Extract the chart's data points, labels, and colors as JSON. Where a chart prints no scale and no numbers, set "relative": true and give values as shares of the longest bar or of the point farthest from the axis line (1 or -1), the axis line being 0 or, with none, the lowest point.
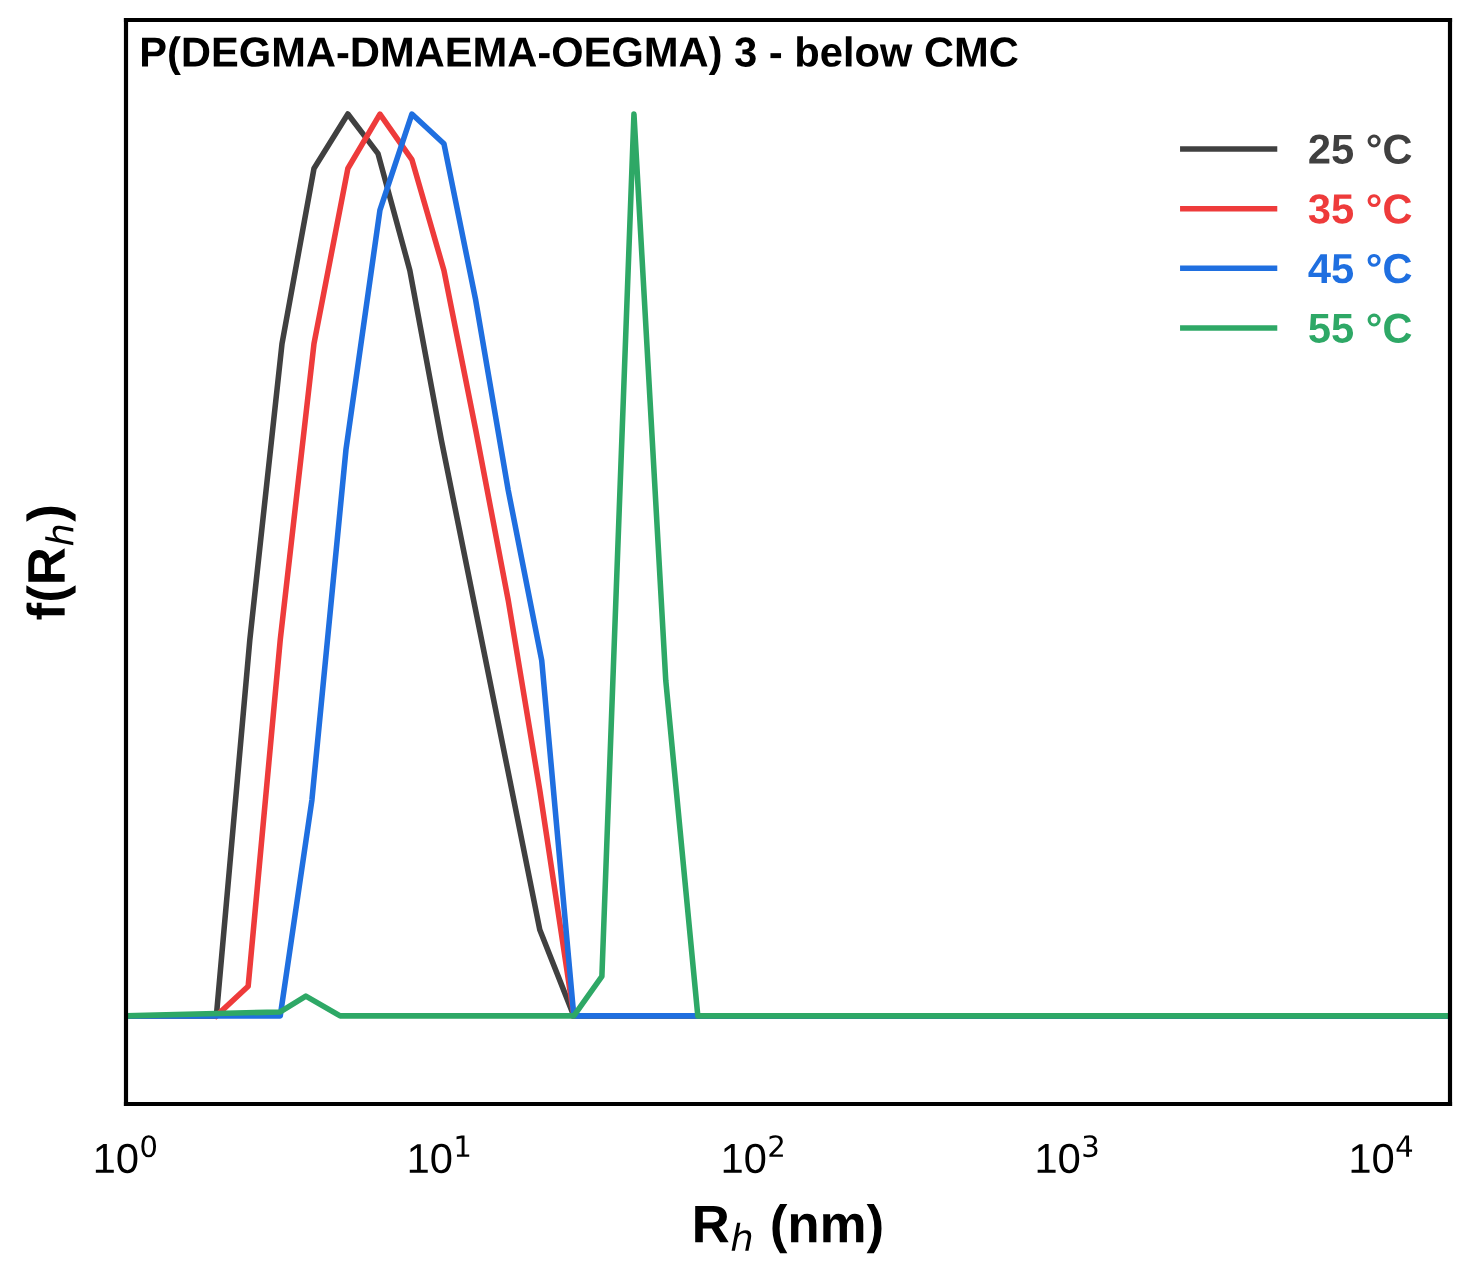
{
  "chart_data": {
    "type": "line",
    "title": "P(DEGMA-DMAEMA-OEGMA) 3 - below CMC",
    "xlabel": "R$_{h}$ (nm)",
    "ylabel": "f(R$_{h}$)",
    "relative": true,
    "log": "x",
    "xlim": [
      1,
      16500
    ],
    "xticks": [
      {
        "value": 1,
        "label": "10$^{0}$"
      },
      {
        "value": 10,
        "label": "10$^{1}$"
      },
      {
        "value": 100,
        "label": "10$^{2}$"
      },
      {
        "value": 1000,
        "label": "10$^{3}$"
      },
      {
        "value": 10000,
        "label": "10$^{4}$"
      }
    ],
    "grid": false,
    "legend": "top right",
    "marker": "none",
    "line_style": "solid",
    "series": [
      {
        "name": "25 °C",
        "color": "#404040",
        "x": [
          1,
          1.94,
          2.48,
          3.14,
          3.97,
          5.09,
          6.35,
          8.02,
          10.1,
          12.8,
          16.7,
          20.8,
          26.7,
          16500
        ],
        "values": [
          0.089,
          0.089,
          0.469,
          0.768,
          0.945,
          1.0,
          0.96,
          0.842,
          0.671,
          0.509,
          0.327,
          0.176,
          0.089,
          0.089
        ]
      },
      {
        "name": "35 °C",
        "color": "#ee3b3b",
        "x": [
          1.94,
          2.45,
          3.1,
          3.97,
          5.09,
          6.44,
          8.14,
          10.3,
          13.0,
          16.5,
          20.8,
          26.7
        ],
        "values": [
          0.089,
          0.119,
          0.469,
          0.768,
          0.945,
          1.0,
          0.954,
          0.842,
          0.681,
          0.509,
          0.317,
          0.089
        ]
      },
      {
        "name": "45 °C",
        "color": "#1f6fe0",
        "x": [
          1,
          3.1,
          3.91,
          5.02,
          6.44,
          8.14,
          10.3,
          13.0,
          16.5,
          21.1,
          26.7,
          16500
        ],
        "values": [
          0.089,
          0.089,
          0.307,
          0.661,
          0.903,
          1.0,
          0.97,
          0.812,
          0.62,
          0.448,
          0.089,
          0.089
        ]
      },
      {
        "name": "55 °C",
        "color": "#2ea866",
        "x": [
          1,
          3.1,
          3.74,
          4.81,
          26.7,
          32.8,
          41.5,
          52.4,
          66.3,
          16500
        ],
        "values": [
          0.089,
          0.093,
          0.109,
          0.089,
          0.089,
          0.129,
          1.0,
          0.428,
          0.089,
          0.089
        ]
      }
    ]
  }
}
